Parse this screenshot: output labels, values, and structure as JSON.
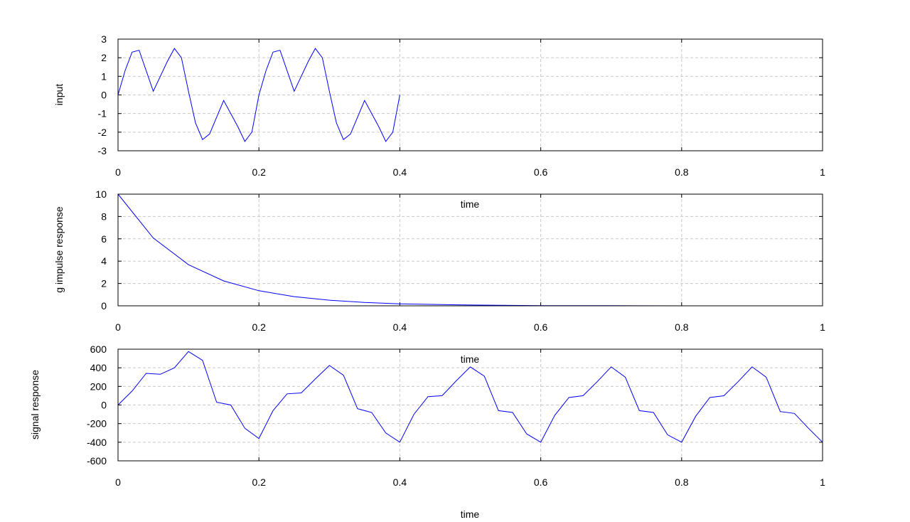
{
  "chart_data": [
    {
      "type": "line",
      "title": "",
      "xlabel": "time",
      "ylabel": "input",
      "xlim": [
        0,
        1
      ],
      "ylim": [
        -3,
        3
      ],
      "grid": true,
      "x_ticks": [
        "0",
        "0.2",
        "0.4",
        "0.6",
        "0.8",
        "1"
      ],
      "y_ticks": [
        "3",
        "2",
        "1",
        "0",
        "-1",
        "-2",
        "-3"
      ],
      "series": [
        {
          "color": "#0000ff",
          "x": [
            0,
            0.01,
            0.02,
            0.03,
            0.05,
            0.07,
            0.08,
            0.09,
            0.1,
            0.11,
            0.12,
            0.13,
            0.15,
            0.17,
            0.18,
            0.19,
            0.2,
            0.21,
            0.22,
            0.23,
            0.25,
            0.27,
            0.28,
            0.29,
            0.3,
            0.31,
            0.32,
            0.33,
            0.35,
            0.37,
            0.38,
            0.39,
            0.4
          ],
          "y": [
            0,
            1.3,
            2.3,
            2.4,
            0.2,
            1.8,
            2.5,
            2.0,
            0.2,
            -1.5,
            -2.4,
            -2.1,
            -0.3,
            -1.7,
            -2.5,
            -2.0,
            0,
            1.3,
            2.3,
            2.4,
            0.2,
            1.8,
            2.5,
            2.0,
            0.2,
            -1.5,
            -2.4,
            -2.1,
            -0.3,
            -1.7,
            -2.5,
            -2.0,
            0
          ]
        }
      ]
    },
    {
      "type": "line",
      "title": "",
      "xlabel": "time",
      "ylabel": "g impulse response",
      "xlim": [
        0,
        1
      ],
      "ylim": [
        0,
        10
      ],
      "grid": true,
      "x_ticks": [
        "0",
        "0.2",
        "0.4",
        "0.6",
        "0.8",
        "1"
      ],
      "y_ticks": [
        "10",
        "8",
        "6",
        "4",
        "2",
        "0"
      ],
      "series": [
        {
          "color": "#0000ff",
          "x": [
            0,
            0.05,
            0.1,
            0.15,
            0.2,
            0.25,
            0.3,
            0.35,
            0.4,
            0.5,
            0.6,
            0.7,
            0.8,
            0.9,
            1.0
          ],
          "y": [
            10,
            6.07,
            3.68,
            2.23,
            1.35,
            0.82,
            0.5,
            0.3,
            0.18,
            0.07,
            0.02,
            0.01,
            0.0,
            0.0,
            0.0
          ]
        }
      ]
    },
    {
      "type": "line",
      "title": "",
      "xlabel": "time",
      "ylabel": "signal response",
      "xlim": [
        0,
        1
      ],
      "ylim": [
        -600,
        600
      ],
      "grid": true,
      "x_ticks": [
        "0",
        "0.2",
        "0.4",
        "0.6",
        "0.8",
        "1"
      ],
      "y_ticks": [
        "600",
        "400",
        "200",
        "0",
        "-200",
        "-400",
        "-600"
      ],
      "series": [
        {
          "color": "#0000ff",
          "x": [
            0,
            0.02,
            0.04,
            0.06,
            0.08,
            0.1,
            0.12,
            0.14,
            0.16,
            0.18,
            0.2,
            0.22,
            0.24,
            0.26,
            0.28,
            0.3,
            0.32,
            0.34,
            0.36,
            0.38,
            0.4,
            0.42,
            0.44,
            0.46,
            0.48,
            0.5,
            0.52,
            0.54,
            0.56,
            0.58,
            0.6,
            0.62,
            0.64,
            0.66,
            0.68,
            0.7,
            0.72,
            0.74,
            0.76,
            0.78,
            0.8,
            0.82,
            0.84,
            0.86,
            0.88,
            0.9,
            0.92,
            0.94,
            0.96,
            0.98,
            1.0
          ],
          "y": [
            0,
            150,
            340,
            330,
            400,
            575,
            480,
            30,
            0,
            -250,
            -360,
            -60,
            120,
            130,
            280,
            425,
            320,
            -40,
            -80,
            -300,
            -400,
            -100,
            90,
            100,
            260,
            410,
            310,
            -60,
            -80,
            -310,
            -400,
            -110,
            80,
            100,
            250,
            410,
            300,
            -60,
            -80,
            -320,
            -400,
            -120,
            80,
            100,
            250,
            410,
            300,
            -70,
            -90,
            -250,
            -400
          ]
        }
      ]
    }
  ]
}
